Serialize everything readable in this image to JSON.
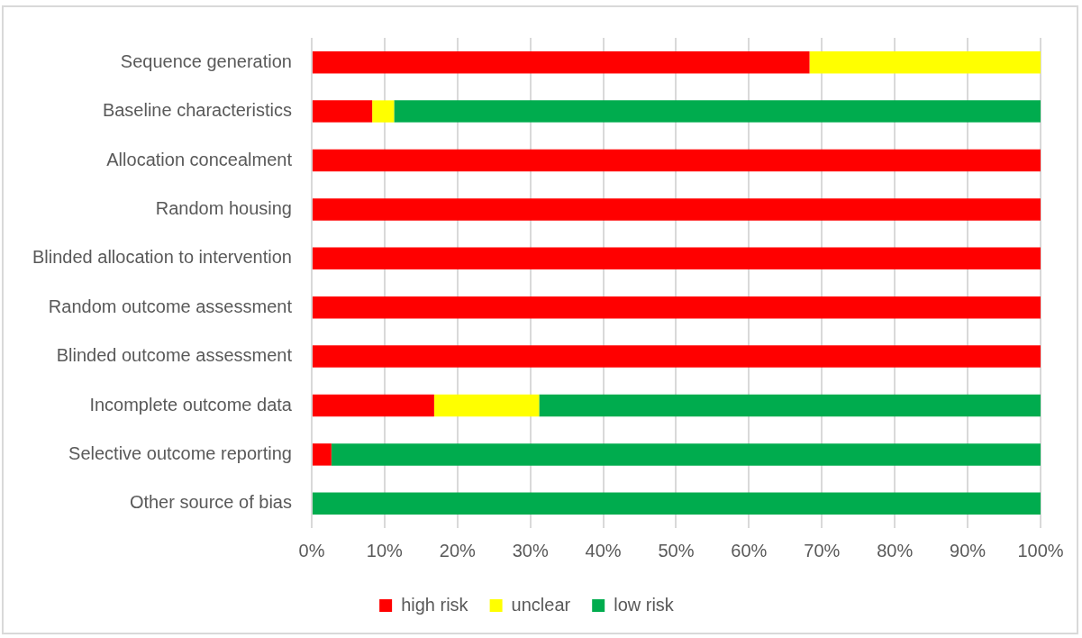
{
  "chart_data": {
    "type": "bar",
    "orientation": "horizontal",
    "stacked": true,
    "categories": [
      "Sequence generation",
      "Baseline characteristics",
      "Allocation concealment",
      "Random housing",
      "Blinded allocation to intervention",
      "Random outcome assessment",
      "Blinded outcome assessment",
      "Incomplete outcome data",
      "Selective outcome reporting",
      "Other source of bias"
    ],
    "series": [
      {
        "name": "high risk",
        "color": "#ff0000",
        "values": [
          68.3,
          8.3,
          100,
          100,
          100,
          100,
          100,
          16.8,
          2.7,
          0
        ]
      },
      {
        "name": "unclear",
        "color": "#ffff00",
        "values": [
          31.7,
          3.0,
          0,
          0,
          0,
          0,
          0,
          14.4,
          0,
          0
        ]
      },
      {
        "name": "low risk",
        "color": "#00ac4e",
        "values": [
          0,
          88.7,
          0,
          0,
          0,
          0,
          0,
          68.8,
          97.3,
          100
        ]
      }
    ],
    "xlim": [
      0,
      100
    ],
    "xticks": [
      {
        "value": 0,
        "label": "0%"
      },
      {
        "value": 10,
        "label": "10%"
      },
      {
        "value": 20,
        "label": "20%"
      },
      {
        "value": 30,
        "label": "30%"
      },
      {
        "value": 40,
        "label": "40%"
      },
      {
        "value": 50,
        "label": "50%"
      },
      {
        "value": 60,
        "label": "60%"
      },
      {
        "value": 70,
        "label": "70%"
      },
      {
        "value": 80,
        "label": "80%"
      },
      {
        "value": 90,
        "label": "90%"
      },
      {
        "value": 100,
        "label": "100%"
      }
    ],
    "grid": "x",
    "legend": "bottom"
  }
}
